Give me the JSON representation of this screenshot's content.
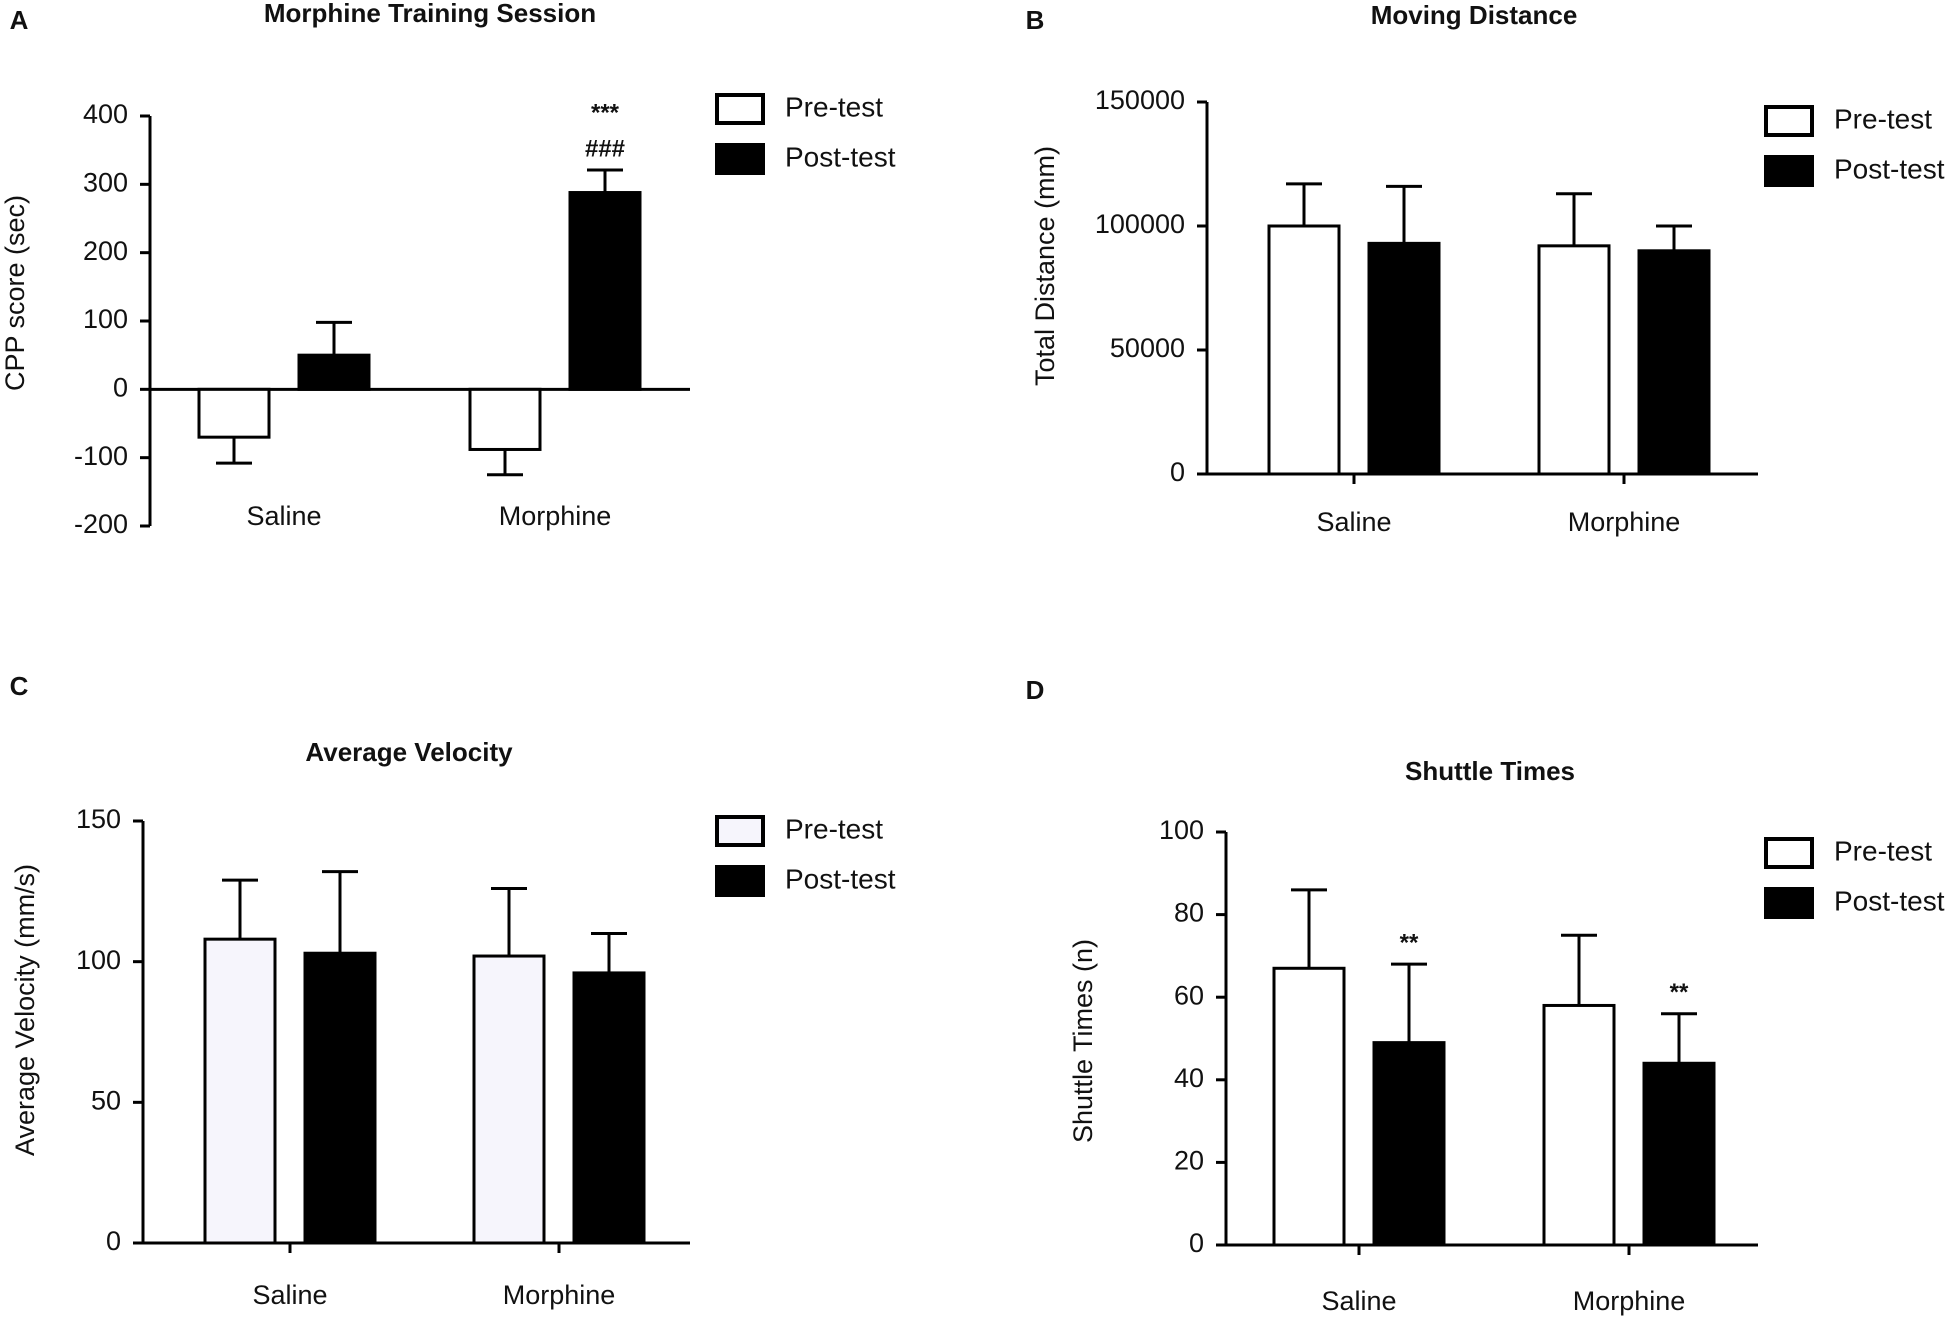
{
  "chart_data": [
    {
      "type": "bar",
      "panel": "A",
      "title": "Morphine Training Session",
      "y_label": "CPP score (sec)",
      "categories": [
        "Saline",
        "Morphine"
      ],
      "series": [
        {
          "name": "Pre-test",
          "color": "#ffffff",
          "values": [
            -70,
            -88
          ],
          "errors": [
            38,
            37
          ]
        },
        {
          "name": "Post-test",
          "color": "#000000",
          "values": [
            50,
            288
          ],
          "errors": [
            48,
            33
          ]
        }
      ],
      "annotations": [
        {
          "text": "***",
          "category": "Morphine",
          "series": "Post-test"
        },
        {
          "text": "###",
          "category": "Morphine",
          "series": "Post-test"
        }
      ],
      "ylim": [
        -200,
        400
      ],
      "yticks": [
        -200,
        -100,
        0,
        100,
        200,
        300,
        400
      ]
    },
    {
      "type": "bar",
      "panel": "B",
      "title": "Moving Distance",
      "y_label": "Total Distance (mm)",
      "categories": [
        "Saline",
        "Morphine"
      ],
      "series": [
        {
          "name": "Pre-test",
          "color": "#ffffff",
          "values": [
            100000,
            92000
          ],
          "errors": [
            17000,
            21000
          ]
        },
        {
          "name": "Post-test",
          "color": "#000000",
          "values": [
            93000,
            90000
          ],
          "errors": [
            23000,
            10000
          ]
        }
      ],
      "annotations": [],
      "ylim": [
        0,
        150000
      ],
      "yticks": [
        0,
        50000,
        100000,
        150000
      ]
    },
    {
      "type": "bar",
      "panel": "C",
      "title": "Average Velocity",
      "y_label": "Average Velocity  (mm/s)",
      "categories": [
        "Saline",
        "Morphine"
      ],
      "series": [
        {
          "name": "Pre-test",
          "color": "#f6f5fc",
          "values": [
            108,
            102
          ],
          "errors": [
            21,
            24
          ]
        },
        {
          "name": "Post-test",
          "color": "#000000",
          "values": [
            103,
            96
          ],
          "errors": [
            29,
            14
          ]
        }
      ],
      "annotations": [],
      "ylim": [
        0,
        150
      ],
      "yticks": [
        0,
        50,
        100,
        150
      ]
    },
    {
      "type": "bar",
      "panel": "D",
      "title": "Shuttle Times",
      "y_label": "Shuttle Times (n)",
      "categories": [
        "Saline",
        "Morphine"
      ],
      "series": [
        {
          "name": "Pre-test",
          "color": "#ffffff",
          "values": [
            67,
            58
          ],
          "errors": [
            19,
            17
          ]
        },
        {
          "name": "Post-test",
          "color": "#000000",
          "values": [
            49,
            44
          ],
          "errors": [
            19,
            12
          ]
        }
      ],
      "annotations": [
        {
          "text": "**",
          "category": "Saline",
          "series": "Post-test"
        },
        {
          "text": "**",
          "category": "Morphine",
          "series": "Post-test"
        }
      ],
      "ylim": [
        0,
        100
      ],
      "yticks": [
        0,
        20,
        40,
        60,
        80,
        100
      ]
    }
  ]
}
